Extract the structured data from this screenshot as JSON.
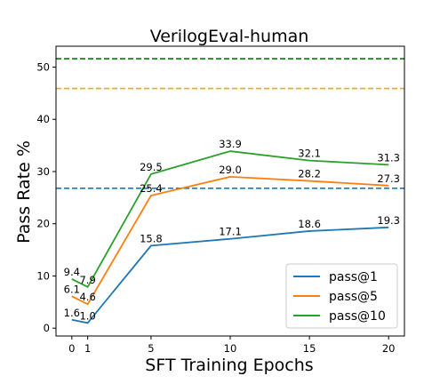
{
  "chart_data": {
    "type": "line",
    "title": "VerilogEval-human",
    "xlabel": "SFT Training Epochs",
    "ylabel": "Pass Rate %",
    "x": [
      0,
      1,
      5,
      10,
      15,
      20
    ],
    "xticks": [
      "0",
      "1",
      "5",
      "10",
      "15",
      "20"
    ],
    "yticks": [
      "0",
      "10",
      "20",
      "30",
      "40",
      "50"
    ],
    "xlim": [
      -1,
      21
    ],
    "ylim": [
      -1.5,
      54
    ],
    "grid": false,
    "legend_position": "lower-right",
    "series": [
      {
        "name": "pass@1",
        "color": "#1f77b4",
        "values": [
          1.6,
          1.0,
          15.8,
          17.1,
          18.6,
          19.3
        ],
        "labels": [
          "1.6",
          "1.0",
          "15.8",
          "17.1",
          "18.6",
          "19.3"
        ]
      },
      {
        "name": "pass@5",
        "color": "#ff7f0e",
        "values": [
          6.1,
          4.6,
          25.4,
          29.0,
          28.2,
          27.3
        ],
        "labels": [
          "6.1",
          "4.6",
          "25.4",
          "29.0",
          "28.2",
          "27.3"
        ]
      },
      {
        "name": "pass@10",
        "color": "#2ca02c",
        "values": [
          9.4,
          7.9,
          29.5,
          33.9,
          32.1,
          31.3
        ],
        "labels": [
          "9.4",
          "7.9",
          "29.5",
          "33.9",
          "32.1",
          "31.3"
        ]
      }
    ],
    "reference_lines": [
      {
        "color": "#1f77b4",
        "y": 26.8
      },
      {
        "color": "#ffa500",
        "y": 45.9
      },
      {
        "color": "#008000",
        "y": 51.6
      }
    ]
  }
}
